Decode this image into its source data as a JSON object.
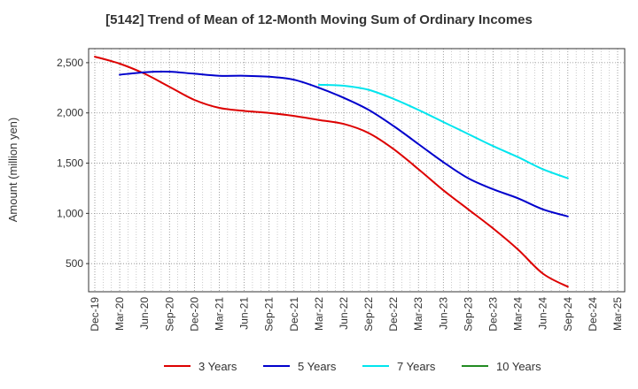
{
  "chart_data": {
    "type": "line",
    "title": "[5142]  Trend of Mean of 12-Month Moving Sum of Ordinary Incomes",
    "xlabel": "",
    "ylabel": "Amount (million yen)",
    "ylim": [
      220,
      2640
    ],
    "yticks": [
      500,
      1000,
      1500,
      2000,
      2500
    ],
    "ytick_labels": [
      "500",
      "1,000",
      "1,500",
      "2,000",
      "2,500"
    ],
    "categories": [
      "Dec-19",
      "Mar-20",
      "Jun-20",
      "Sep-20",
      "Dec-20",
      "Mar-21",
      "Jun-21",
      "Sep-21",
      "Dec-21",
      "Mar-22",
      "Jun-22",
      "Sep-22",
      "Dec-22",
      "Mar-23",
      "Jun-23",
      "Sep-23",
      "Dec-23",
      "Mar-24",
      "Jun-24",
      "Sep-24",
      "Dec-24",
      "Mar-25"
    ],
    "grid": true,
    "legend_position": "bottom",
    "series": [
      {
        "name": "3 Years",
        "color": "#dd0000",
        "values": [
          2560,
          2490,
          2390,
          2260,
          2130,
          2050,
          2020,
          2000,
          1970,
          1930,
          1890,
          1800,
          1640,
          1440,
          1230,
          1040,
          850,
          640,
          400,
          270,
          null,
          null
        ]
      },
      {
        "name": "5 Years",
        "color": "#0000cc",
        "values": [
          null,
          2380,
          2405,
          2410,
          2390,
          2370,
          2370,
          2360,
          2330,
          2250,
          2150,
          2030,
          1870,
          1690,
          1510,
          1350,
          1240,
          1150,
          1040,
          970,
          null,
          null
        ]
      },
      {
        "name": "7 Years",
        "color": "#00e5ee",
        "values": [
          null,
          null,
          null,
          null,
          null,
          null,
          null,
          null,
          null,
          2280,
          2270,
          2230,
          2140,
          2030,
          1910,
          1790,
          1670,
          1560,
          1440,
          1350,
          null,
          null
        ]
      },
      {
        "name": "10 Years",
        "color": "#228b22",
        "values": [
          null,
          null,
          null,
          null,
          null,
          null,
          null,
          null,
          null,
          null,
          null,
          null,
          null,
          null,
          null,
          null,
          null,
          null,
          null,
          null,
          null,
          null
        ]
      }
    ]
  }
}
